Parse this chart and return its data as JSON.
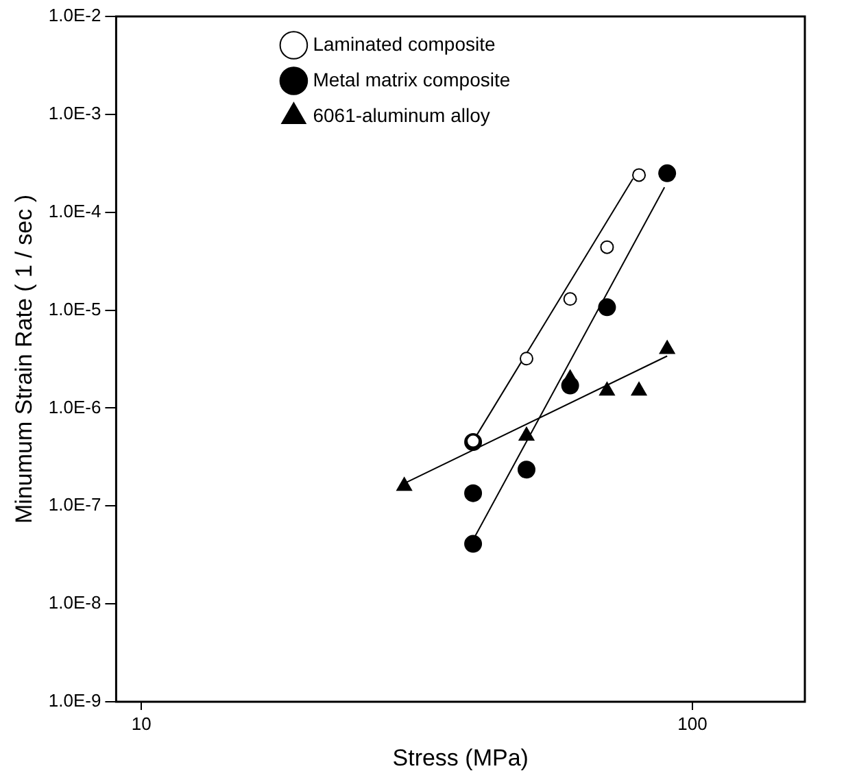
{
  "chart_data": {
    "type": "scatter",
    "xlabel": "Stress (MPa)",
    "ylabel": "Minumum Strain Rate ( 1 / sec )",
    "log": "xy",
    "grid": false,
    "legend": "top",
    "xlim": [
      9,
      160
    ],
    "xticks": [
      10,
      100
    ],
    "ylim": [
      1e-09,
      0.01
    ],
    "yticks": [
      {
        "value": 1e-09,
        "label": "1.0E-9"
      },
      {
        "value": 1e-08,
        "label": "1.0E-8"
      },
      {
        "value": 1e-07,
        "label": "1.0E-7"
      },
      {
        "value": 1e-06,
        "label": "1.0E-6"
      },
      {
        "value": 1e-05,
        "label": "1.0E-5"
      },
      {
        "value": 0.0001,
        "label": "1.0E-4"
      },
      {
        "value": 0.001,
        "label": "1.0E-3"
      },
      {
        "value": 0.01,
        "label": "1.0E-2"
      }
    ],
    "series": [
      {
        "name": "Laminated composite",
        "marker": "circle",
        "color": "#ffffff",
        "x": [
          40,
          50,
          60,
          70,
          80
        ],
        "values": [
          4.6e-07,
          3.2e-06,
          1.3e-05,
          4.4e-05,
          0.00024
        ]
      },
      {
        "name": "Metal matrix composite",
        "marker": "circle",
        "color": "#000000",
        "x": [
          40,
          40,
          40,
          50,
          60,
          70,
          90
        ],
        "values": [
          4.5e-07,
          1.35e-07,
          4.1e-08,
          2.35e-07,
          1.7e-06,
          1.07e-05,
          0.00025
        ]
      },
      {
        "name": "6061-aluminum alloy",
        "marker": "triangle",
        "color": "#000000",
        "x": [
          30,
          50,
          60,
          70,
          80,
          90
        ],
        "values": [
          1.6e-07,
          5.2e-07,
          2e-06,
          1.5e-06,
          1.5e-06,
          4e-06
        ]
      },
      {
        "type": "line",
        "marker": "none",
        "color": "#000000",
        "x": [
          40,
          78
        ],
        "values": [
          4.6e-07,
          0.00022
        ]
      },
      {
        "type": "line",
        "marker": "none",
        "color": "#000000",
        "x": [
          40,
          89
        ],
        "values": [
          4.5e-08,
          0.00018
        ]
      },
      {
        "type": "line",
        "marker": "none",
        "color": "#000000",
        "x": [
          30,
          90
        ],
        "values": [
          1.7e-07,
          3.4e-06
        ]
      }
    ]
  }
}
